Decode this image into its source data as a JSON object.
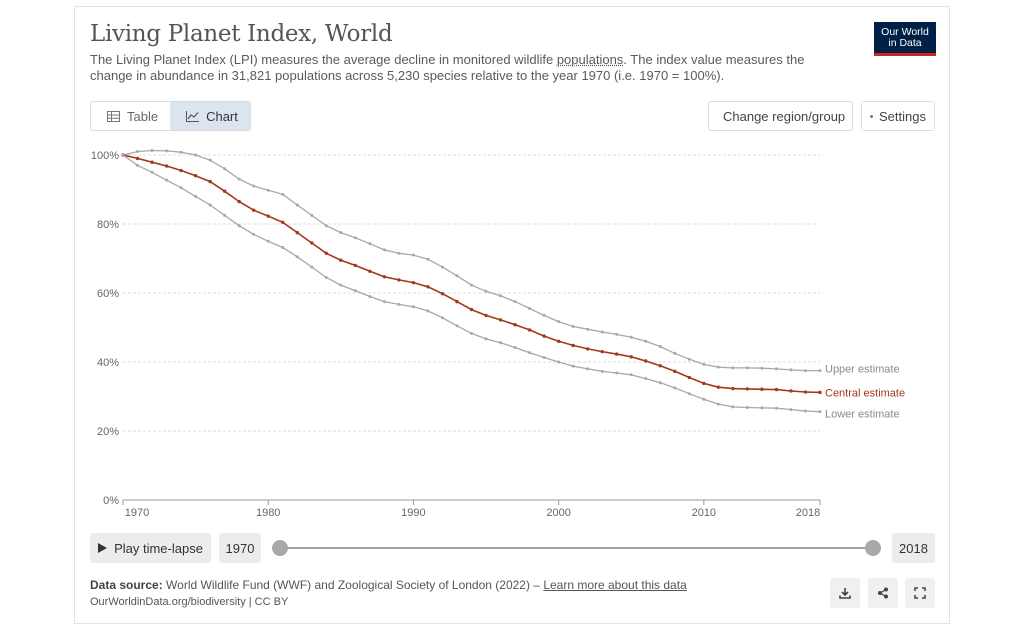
{
  "header": {
    "title": "Living Planet Index, World",
    "subtitle_pre": "The Living Planet Index (LPI) measures the average decline in monitored wildlife ",
    "subtitle_link": "populations",
    "subtitle_post": ". The index value measures the change in abundance in 31,821 populations across 5,230 species relative to the year 1970 (i.e. 1970 = 100%).",
    "logo_line1": "Our World",
    "logo_line2": "in Data"
  },
  "tabs": [
    {
      "label": "Table",
      "icon": "table-icon",
      "active": false
    },
    {
      "label": "Chart",
      "icon": "line-chart-icon",
      "active": true
    }
  ],
  "toolbar": {
    "change_region_label": "Change region/group",
    "settings_label": "Settings"
  },
  "timeline": {
    "play_label": "Play time-lapse",
    "start_year": "1970",
    "end_year": "2018"
  },
  "footer": {
    "source_label": "Data source:",
    "source_text": " World Wildlife Fund (WWF) and Zoological Society of London (2022) – ",
    "source_link": "Learn more about this data",
    "license": "OurWorldinData.org/biodiversity | CC BY"
  },
  "colors": {
    "central": "#a2391c",
    "bounds": "#a8a8a8",
    "grid": "#dddddd",
    "logo_bg": "#002147",
    "logo_accent": "#ce261e",
    "active_tab": "#dbe5f0"
  },
  "chart_data": {
    "type": "line",
    "title": "Living Planet Index, World",
    "xlim": [
      1970,
      2018
    ],
    "ylim": [
      0,
      100
    ],
    "y_unit": "%",
    "grid": true,
    "x_ticks": [
      1970,
      1980,
      1990,
      2000,
      2010,
      2018
    ],
    "y_ticks": [
      0,
      20,
      40,
      60,
      80,
      100
    ],
    "x": [
      1970,
      1971,
      1972,
      1973,
      1974,
      1975,
      1976,
      1977,
      1978,
      1979,
      1980,
      1981,
      1982,
      1983,
      1984,
      1985,
      1986,
      1987,
      1988,
      1989,
      1990,
      1991,
      1992,
      1993,
      1994,
      1995,
      1996,
      1997,
      1998,
      1999,
      2000,
      2001,
      2002,
      2003,
      2004,
      2005,
      2006,
      2007,
      2008,
      2009,
      2010,
      2011,
      2012,
      2013,
      2014,
      2015,
      2016,
      2017,
      2018
    ],
    "series": [
      {
        "name": "Upper estimate",
        "style": "bound",
        "values": [
          100,
          101,
          101.3,
          101.2,
          100.8,
          100,
          98.5,
          96,
          93,
          91,
          89.8,
          88.6,
          85.5,
          82.5,
          79.5,
          77.5,
          76,
          74.3,
          72.5,
          71.5,
          71,
          69.8,
          67.5,
          65,
          62.3,
          60.5,
          59.2,
          57.5,
          55.5,
          53.5,
          51.7,
          50.3,
          49.5,
          48.7,
          48,
          47.2,
          46,
          44.5,
          42.5,
          40.8,
          39.3,
          38.5,
          38.3,
          38.3,
          38.2,
          38,
          37.7,
          37.5,
          37.5
        ]
      },
      {
        "name": "Central estimate",
        "style": "central",
        "values": [
          100,
          99,
          97.9,
          96.8,
          95.5,
          94,
          92.3,
          89.5,
          86.5,
          84,
          82.3,
          80.5,
          77.5,
          74.5,
          71.5,
          69.5,
          68,
          66.3,
          64.7,
          63.8,
          63,
          61.8,
          59.8,
          57.5,
          55.2,
          53.5,
          52.2,
          50.8,
          49.3,
          47.5,
          46,
          44.8,
          43.8,
          43,
          42.3,
          41.5,
          40.3,
          38.9,
          37.3,
          35.5,
          33.8,
          32.7,
          32.3,
          32.2,
          32.1,
          32,
          31.6,
          31.3,
          31.2
        ]
      },
      {
        "name": "Lower estimate",
        "style": "bound",
        "values": [
          100,
          97,
          95,
          92.7,
          90.5,
          88,
          85.5,
          82.5,
          79.5,
          77,
          75,
          73.2,
          70.5,
          67.5,
          64.5,
          62.3,
          60.7,
          59,
          57.5,
          56.7,
          56,
          54.8,
          52.8,
          50.5,
          48.3,
          46.7,
          45.6,
          44.2,
          42.7,
          41.3,
          40,
          38.8,
          38,
          37.3,
          36.8,
          36.3,
          35.2,
          34,
          32.5,
          30.8,
          29.2,
          27.8,
          27,
          26.8,
          26.7,
          26.6,
          26.2,
          25.8,
          25.6
        ]
      }
    ]
  }
}
